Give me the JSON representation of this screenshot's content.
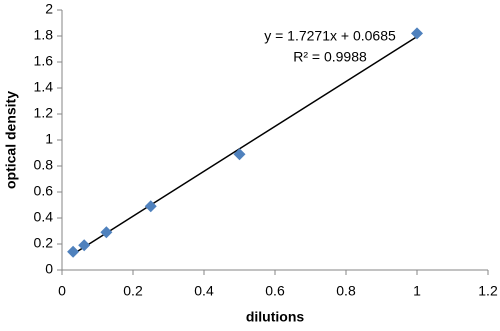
{
  "chart_data": {
    "type": "scatter",
    "x_label": "dilutions",
    "y_label": "optical density",
    "series": [
      {
        "name": "optical density",
        "color": "#4f81bd",
        "x": [
          0.03125,
          0.0625,
          0.125,
          0.25,
          0.5,
          1
        ],
        "values": [
          0.14,
          0.19,
          0.29,
          0.49,
          0.89,
          1.82
        ]
      }
    ],
    "trendline": {
      "slope": 1.7271,
      "intercept": 0.0685,
      "color": "#000000",
      "equation_label": "y = 1.7271x + 0.0685",
      "r2_label": "R² = 0.9988"
    },
    "xlim": [
      0,
      1.2
    ],
    "xticks": [
      0,
      0.2,
      0.4,
      0.6,
      0.8,
      1,
      1.2
    ],
    "ylim": [
      0,
      2
    ],
    "yticks": [
      0,
      0.2,
      0.4,
      0.6,
      0.8,
      1,
      1.2,
      1.4,
      1.6,
      1.8,
      2
    ],
    "grid": false
  }
}
